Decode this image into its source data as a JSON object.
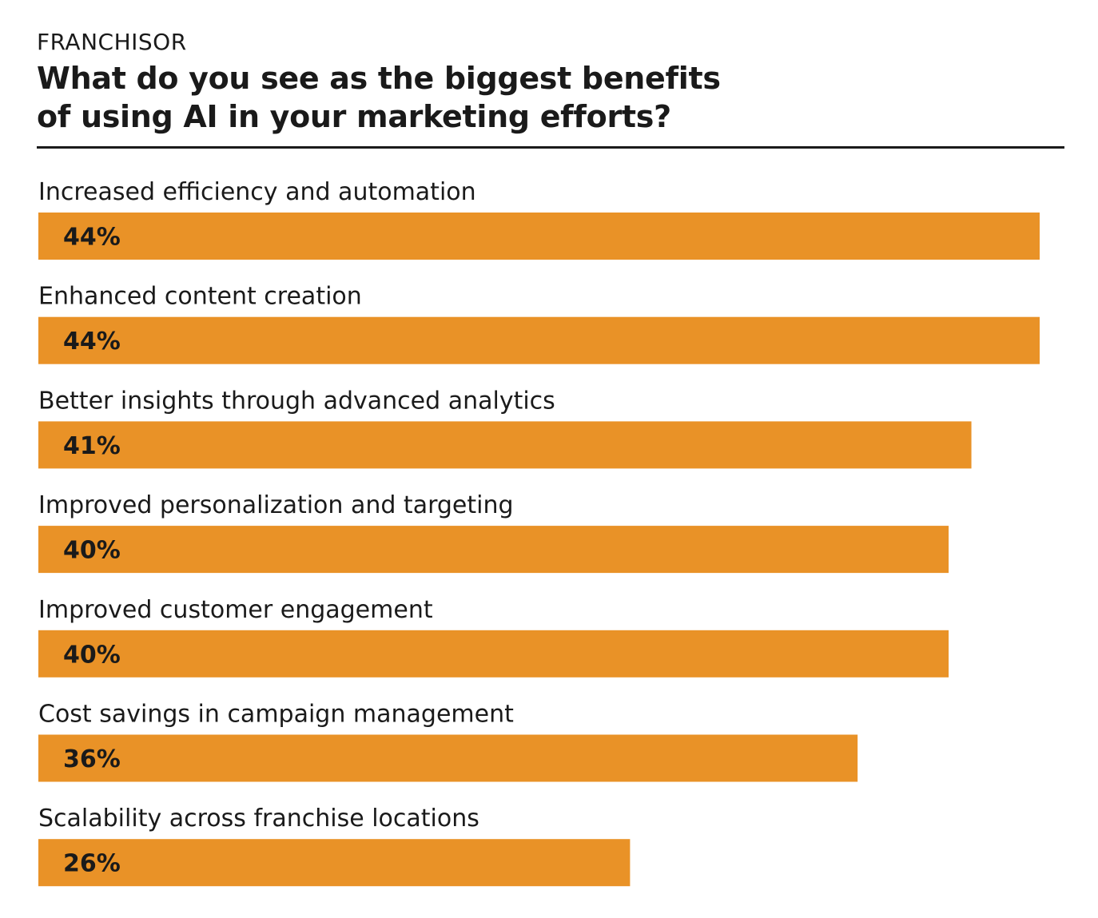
{
  "header": {
    "eyebrow": "FRANCHISOR",
    "title": "What do you see as the biggest benefits of using AI in your marketing efforts?"
  },
  "colors": {
    "bar": "#E99227",
    "text": "#1a1a1a"
  },
  "chart_data": {
    "type": "bar",
    "orientation": "horizontal",
    "title": "What do you see as the biggest benefits of using AI in your marketing efforts?",
    "categories": [
      "Increased efficiency and automation",
      "Enhanced content creation",
      "Better insights through advanced analytics",
      "Improved personalization and targeting",
      "Improved customer engagement",
      "Cost savings in campaign management",
      "Scalability across franchise locations"
    ],
    "values": [
      44,
      44,
      41,
      40,
      40,
      36,
      26
    ],
    "value_labels": [
      "44%",
      "44%",
      "41%",
      "40%",
      "40%",
      "36%",
      "26%"
    ],
    "unit": "%",
    "xlabel": "",
    "ylabel": "",
    "xlim": [
      0,
      44
    ],
    "grid": false,
    "legend": "none"
  }
}
